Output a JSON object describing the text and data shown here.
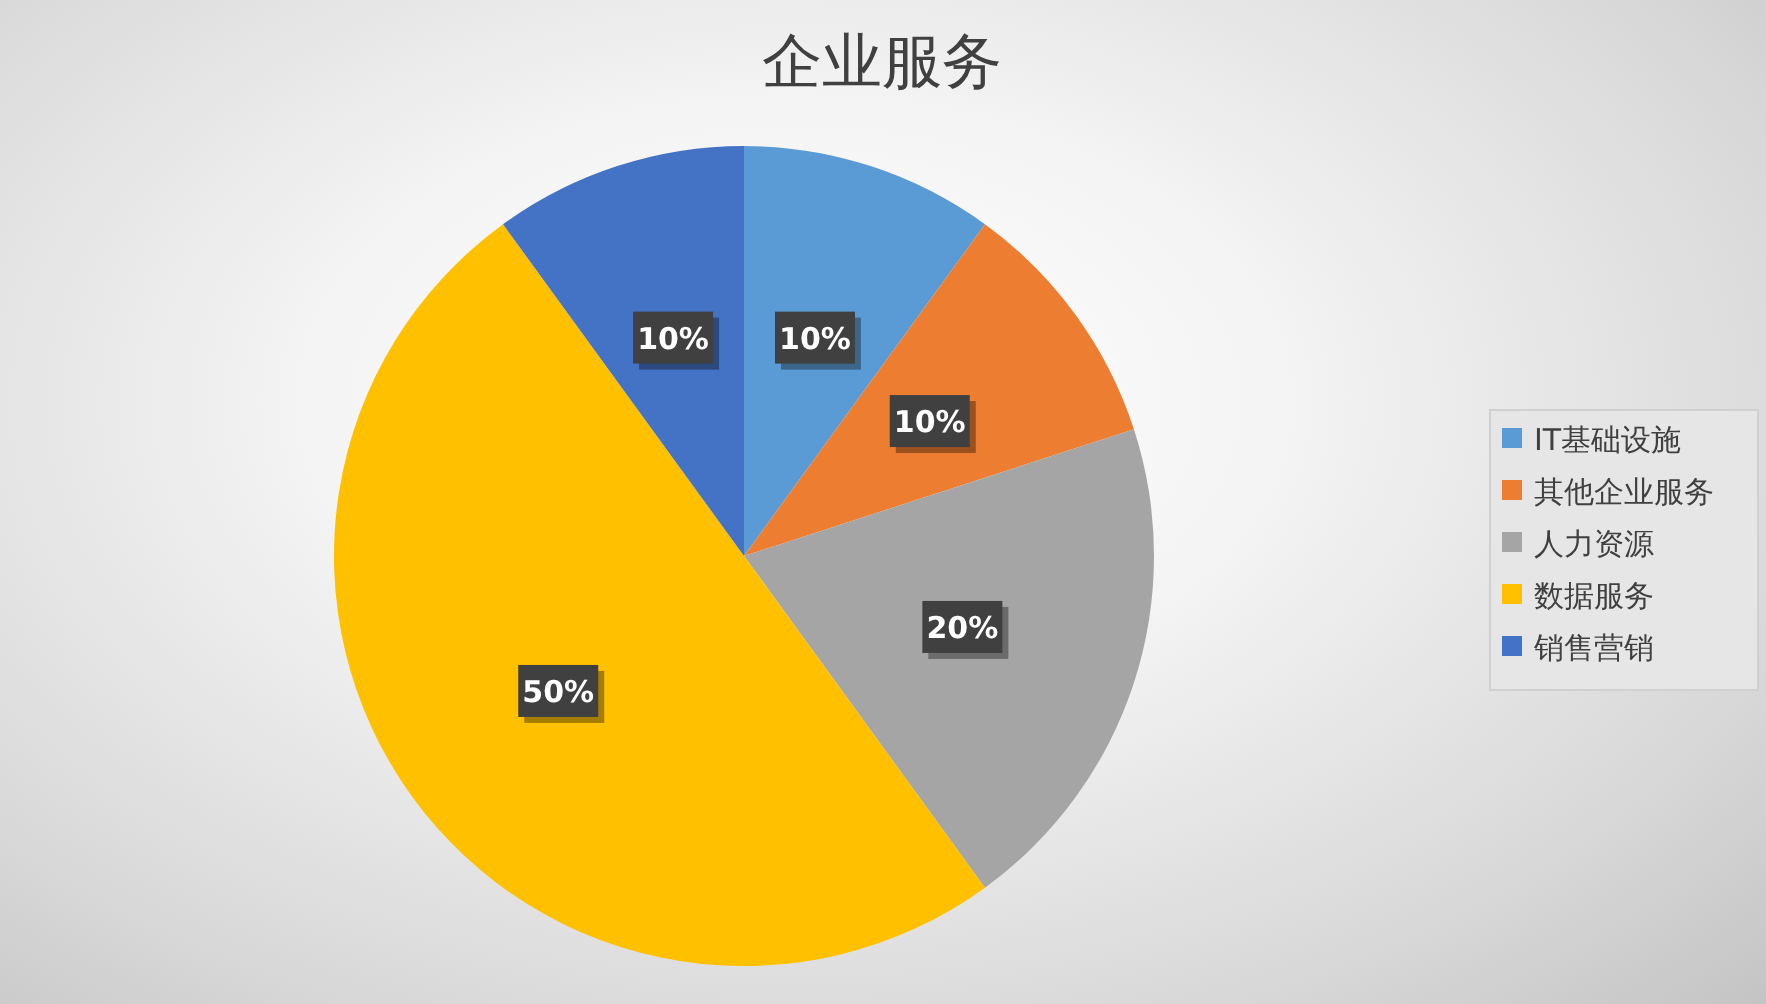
{
  "chart_data": {
    "type": "pie",
    "title": "企业服务",
    "categories": [
      "IT基础设施",
      "其他企业服务",
      "人力资源",
      "数据服务",
      "销售营销"
    ],
    "values": [
      10,
      10,
      20,
      50,
      10
    ],
    "value_labels": [
      "10%",
      "10%",
      "20%",
      "50%",
      "10%"
    ],
    "colors": [
      "#5b9bd5",
      "#ed7d31",
      "#a5a5a5",
      "#ffc000",
      "#4472c4"
    ],
    "legend": "right"
  }
}
